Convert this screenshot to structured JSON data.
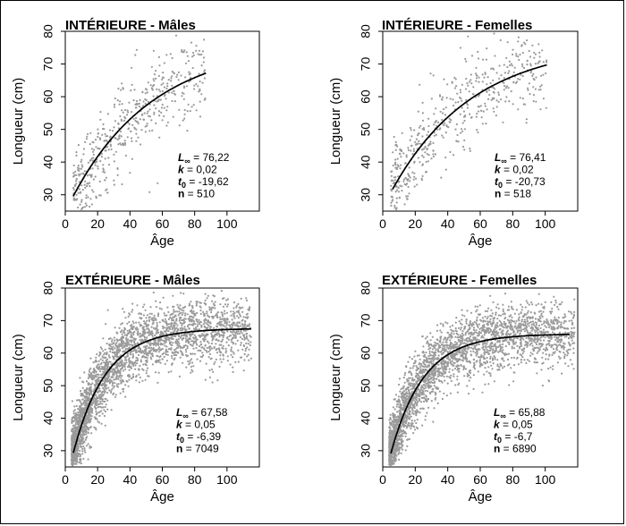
{
  "chart_data": [
    {
      "type": "scatter",
      "title": "INTÉRIEURE - Mâles",
      "xlabel": "Âge",
      "ylabel": "Longueur (cm)",
      "xlim": [
        0,
        120
      ],
      "ylim": [
        25,
        80
      ],
      "xticks": [
        0,
        20,
        40,
        60,
        80,
        100
      ],
      "yticks": [
        30,
        40,
        50,
        60,
        70,
        80
      ],
      "grid": false,
      "model": {
        "Linf": 76.22,
        "k": 0.02,
        "t0": -19.62,
        "n": 510,
        "x_range": [
          5,
          87
        ]
      },
      "stats": {
        "linf_label": "L",
        "linf_value": "= 76,22",
        "k_label": "k",
        "k_value": "= 0,02",
        "t0_label": "t",
        "t0_value": "= -19,62",
        "n_label": "n",
        "n_value": "= 510"
      },
      "scatter": {
        "x_range": [
          5,
          87
        ],
        "sigma": 6.5
      }
    },
    {
      "type": "scatter",
      "title": "INTÉRIEURE - Femelles",
      "xlabel": "Âge",
      "ylabel": "Longueur (cm)",
      "xlim": [
        0,
        120
      ],
      "ylim": [
        25,
        80
      ],
      "xticks": [
        0,
        20,
        40,
        60,
        80,
        100
      ],
      "yticks": [
        30,
        40,
        50,
        60,
        70,
        80
      ],
      "grid": false,
      "model": {
        "Linf": 76.41,
        "k": 0.02,
        "t0": -20.73,
        "n": 518,
        "x_range": [
          6,
          101
        ]
      },
      "stats": {
        "linf_label": "L",
        "linf_value": "= 76,41",
        "k_label": "k",
        "k_value": "= 0,02",
        "t0_label": "t",
        "t0_value": "= -20,73",
        "n_label": "n",
        "n_value": "= 518"
      },
      "scatter": {
        "x_range": [
          5,
          101
        ],
        "sigma": 6.2
      }
    },
    {
      "type": "scatter",
      "title": "EXTÉRIEURE - Mâles",
      "xlabel": "Âge",
      "ylabel": "Longueur (cm)",
      "xlim": [
        0,
        120
      ],
      "ylim": [
        25,
        80
      ],
      "xticks": [
        0,
        20,
        40,
        60,
        80,
        100
      ],
      "yticks": [
        30,
        40,
        50,
        60,
        70,
        80
      ],
      "grid": false,
      "model": {
        "Linf": 67.58,
        "k": 0.05,
        "t0": -6.39,
        "n": 7049,
        "x_range": [
          5,
          115
        ]
      },
      "stats": {
        "linf_label": "L",
        "linf_value": "= 67,58",
        "k_label": "k",
        "k_value": "= 0,05",
        "t0_label": "t",
        "t0_value": "= -6,39",
        "n_label": "n",
        "n_value": "= 7049"
      },
      "scatter": {
        "x_range": [
          4,
          115
        ],
        "sigma": 5.0
      }
    },
    {
      "type": "scatter",
      "title": "EXTÉRIEURE - Femelles",
      "xlabel": "Âge",
      "ylabel": "Longueur (cm)",
      "xlim": [
        0,
        120
      ],
      "ylim": [
        25,
        80
      ],
      "xticks": [
        0,
        20,
        40,
        60,
        80,
        100
      ],
      "yticks": [
        30,
        40,
        50,
        60,
        70,
        80
      ],
      "grid": false,
      "model": {
        "Linf": 65.88,
        "k": 0.05,
        "t0": -6.7,
        "n": 6890,
        "x_range": [
          5,
          115
        ]
      },
      "stats": {
        "linf_label": "L",
        "linf_value": "= 65,88",
        "k_label": "k",
        "k_value": "= 0,05",
        "t0_label": "t",
        "t0_value": "= -6,7",
        "n_label": "n",
        "n_value": "= 6890"
      },
      "scatter": {
        "x_range": [
          4,
          118
        ],
        "sigma": 4.8
      }
    }
  ],
  "labels": {
    "infinity_sub": "∞",
    "zero_sub": "0"
  },
  "colors": {
    "points": "#9a9a9a",
    "curve": "#000000",
    "axes": "#000000"
  }
}
